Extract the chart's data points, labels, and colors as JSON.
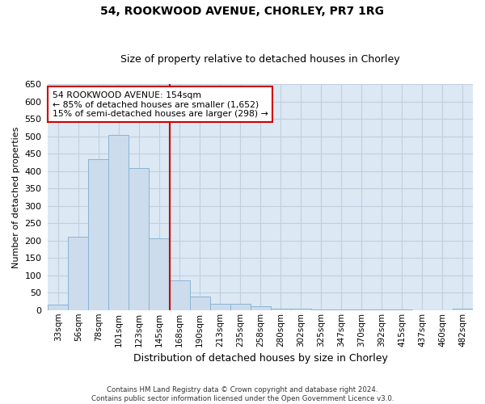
{
  "title_line1": "54, ROOKWOOD AVENUE, CHORLEY, PR7 1RG",
  "title_line2": "Size of property relative to detached houses in Chorley",
  "xlabel": "Distribution of detached houses by size in Chorley",
  "ylabel": "Number of detached properties",
  "footnote": "Contains HM Land Registry data © Crown copyright and database right 2024.\nContains public sector information licensed under the Open Government Licence v3.0.",
  "categories": [
    "33sqm",
    "56sqm",
    "78sqm",
    "101sqm",
    "123sqm",
    "145sqm",
    "168sqm",
    "190sqm",
    "213sqm",
    "235sqm",
    "258sqm",
    "280sqm",
    "302sqm",
    "325sqm",
    "347sqm",
    "370sqm",
    "392sqm",
    "415sqm",
    "437sqm",
    "460sqm",
    "482sqm"
  ],
  "values": [
    15,
    212,
    435,
    503,
    408,
    207,
    85,
    38,
    18,
    18,
    10,
    5,
    4,
    2,
    2,
    2,
    2,
    2,
    0,
    0,
    4
  ],
  "bar_color": "#ccdcec",
  "bar_edge_color": "#8ab4d4",
  "grid_color": "#c0d0e0",
  "plot_bg_color": "#dce8f4",
  "figure_bg_color": "#ffffff",
  "vline_x": 5.5,
  "vline_color": "#cc0000",
  "annotation_text": "54 ROOKWOOD AVENUE: 154sqm\n← 85% of detached houses are smaller (1,652)\n15% of semi-detached houses are larger (298) →",
  "annotation_box_color": "white",
  "annotation_box_edge_color": "#cc0000",
  "ylim": [
    0,
    650
  ],
  "yticks": [
    0,
    50,
    100,
    150,
    200,
    250,
    300,
    350,
    400,
    450,
    500,
    550,
    600,
    650
  ]
}
